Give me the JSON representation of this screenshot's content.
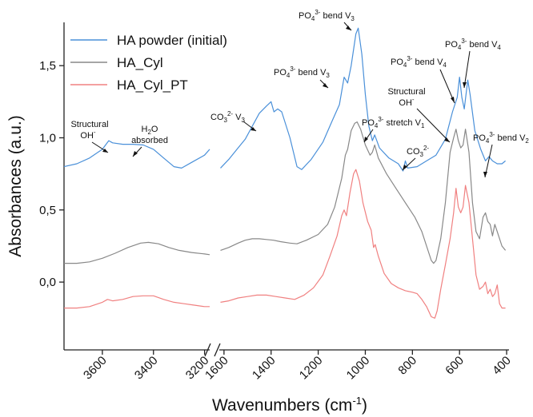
{
  "chart_data": {
    "type": "line",
    "xlabel": "Wavenumbers (cm",
    "xlabel_sup": "-1",
    "xlabel_end": ")",
    "ylabel": "Absorbances (a.u.)",
    "ylim": [
      -0.47,
      1.8
    ],
    "x_reversed": true,
    "x_break": true,
    "x_segments": [
      [
        3750,
        3180
      ],
      [
        1620,
        390
      ]
    ],
    "x_ticks_left": [
      "3600",
      "3400",
      "3200"
    ],
    "x_ticks_right": [
      "1600",
      "1400",
      "1200",
      "1000",
      "800",
      "600",
      "400"
    ],
    "y_ticks": [
      "0,0",
      "0,5",
      "1,0",
      "1,5"
    ],
    "legend_position": "top-left",
    "series": [
      {
        "name": "HA powder (initial)",
        "color": "#4a90d9",
        "left": [
          [
            3750,
            0.8
          ],
          [
            3700,
            0.82
          ],
          [
            3650,
            0.86
          ],
          [
            3600,
            0.92
          ],
          [
            3575,
            0.98
          ],
          [
            3560,
            0.965
          ],
          [
            3520,
            0.955
          ],
          [
            3480,
            0.955
          ],
          [
            3440,
            0.95
          ],
          [
            3400,
            0.92
          ],
          [
            3360,
            0.86
          ],
          [
            3320,
            0.8
          ],
          [
            3290,
            0.79
          ],
          [
            3250,
            0.83
          ],
          [
            3200,
            0.88
          ],
          [
            3180,
            0.92
          ]
        ],
        "right": [
          [
            1615,
            0.79
          ],
          [
            1580,
            0.85
          ],
          [
            1540,
            0.93
          ],
          [
            1510,
            0.99
          ],
          [
            1480,
            1.08
          ],
          [
            1450,
            1.17
          ],
          [
            1420,
            1.22
          ],
          [
            1400,
            1.25
          ],
          [
            1388,
            1.18
          ],
          [
            1372,
            1.2
          ],
          [
            1355,
            1.18
          ],
          [
            1320,
            1.0
          ],
          [
            1290,
            0.8
          ],
          [
            1270,
            0.78
          ],
          [
            1230,
            0.85
          ],
          [
            1180,
            0.97
          ],
          [
            1140,
            1.12
          ],
          [
            1110,
            1.23
          ],
          [
            1090,
            1.42
          ],
          [
            1075,
            1.38
          ],
          [
            1060,
            1.5
          ],
          [
            1040,
            1.72
          ],
          [
            1030,
            1.76
          ],
          [
            1015,
            1.58
          ],
          [
            1000,
            1.3
          ],
          [
            985,
            1.08
          ],
          [
            970,
            0.98
          ],
          [
            960,
            1.02
          ],
          [
            940,
            0.93
          ],
          [
            900,
            0.86
          ],
          [
            860,
            0.82
          ],
          [
            840,
            0.77
          ],
          [
            830,
            0.84
          ],
          [
            820,
            0.79
          ],
          [
            780,
            0.8
          ],
          [
            740,
            0.84
          ],
          [
            700,
            0.88
          ],
          [
            660,
            0.99
          ],
          [
            630,
            1.18
          ],
          [
            610,
            1.28
          ],
          [
            600,
            1.42
          ],
          [
            590,
            1.28
          ],
          [
            580,
            1.2
          ],
          [
            565,
            1.4
          ],
          [
            555,
            1.3
          ],
          [
            535,
            1.05
          ],
          [
            510,
            0.92
          ],
          [
            490,
            0.84
          ],
          [
            475,
            0.87
          ],
          [
            460,
            0.84
          ],
          [
            440,
            0.82
          ],
          [
            420,
            0.82
          ],
          [
            405,
            0.84
          ]
        ]
      },
      {
        "name": "HA_Cyl",
        "color": "#888888",
        "left": [
          [
            3750,
            0.13
          ],
          [
            3700,
            0.13
          ],
          [
            3650,
            0.14
          ],
          [
            3600,
            0.165
          ],
          [
            3550,
            0.2
          ],
          [
            3500,
            0.24
          ],
          [
            3450,
            0.27
          ],
          [
            3420,
            0.275
          ],
          [
            3380,
            0.265
          ],
          [
            3340,
            0.24
          ],
          [
            3300,
            0.22
          ],
          [
            3250,
            0.205
          ],
          [
            3200,
            0.195
          ],
          [
            3180,
            0.19
          ]
        ],
        "right": [
          [
            1615,
            0.22
          ],
          [
            1580,
            0.24
          ],
          [
            1540,
            0.27
          ],
          [
            1510,
            0.29
          ],
          [
            1480,
            0.3
          ],
          [
            1450,
            0.3
          ],
          [
            1420,
            0.295
          ],
          [
            1390,
            0.29
          ],
          [
            1360,
            0.28
          ],
          [
            1320,
            0.27
          ],
          [
            1290,
            0.265
          ],
          [
            1250,
            0.29
          ],
          [
            1200,
            0.33
          ],
          [
            1160,
            0.4
          ],
          [
            1130,
            0.52
          ],
          [
            1100,
            0.72
          ],
          [
            1085,
            0.88
          ],
          [
            1075,
            0.92
          ],
          [
            1060,
            1.05
          ],
          [
            1045,
            1.1
          ],
          [
            1035,
            1.11
          ],
          [
            1020,
            1.06
          ],
          [
            1000,
            0.95
          ],
          [
            980,
            0.88
          ],
          [
            970,
            0.9
          ],
          [
            960,
            0.95
          ],
          [
            945,
            0.86
          ],
          [
            910,
            0.75
          ],
          [
            870,
            0.65
          ],
          [
            830,
            0.55
          ],
          [
            790,
            0.45
          ],
          [
            760,
            0.35
          ],
          [
            740,
            0.25
          ],
          [
            720,
            0.15
          ],
          [
            710,
            0.13
          ],
          [
            700,
            0.15
          ],
          [
            680,
            0.3
          ],
          [
            660,
            0.55
          ],
          [
            640,
            0.9
          ],
          [
            625,
            1.0
          ],
          [
            615,
            1.06
          ],
          [
            605,
            0.98
          ],
          [
            595,
            0.93
          ],
          [
            585,
            0.95
          ],
          [
            575,
            1.06
          ],
          [
            560,
            0.9
          ],
          [
            545,
            0.55
          ],
          [
            530,
            0.35
          ],
          [
            515,
            0.3
          ],
          [
            500,
            0.45
          ],
          [
            490,
            0.48
          ],
          [
            480,
            0.42
          ],
          [
            470,
            0.4
          ],
          [
            460,
            0.32
          ],
          [
            450,
            0.4
          ],
          [
            440,
            0.35
          ],
          [
            420,
            0.25
          ],
          [
            405,
            0.22
          ]
        ]
      },
      {
        "name": "HA_Cyl_PT",
        "color": "#f08080",
        "left": [
          [
            3750,
            -0.18
          ],
          [
            3700,
            -0.18
          ],
          [
            3650,
            -0.17
          ],
          [
            3600,
            -0.14
          ],
          [
            3580,
            -0.12
          ],
          [
            3560,
            -0.13
          ],
          [
            3520,
            -0.12
          ],
          [
            3480,
            -0.1
          ],
          [
            3440,
            -0.095
          ],
          [
            3400,
            -0.095
          ],
          [
            3360,
            -0.12
          ],
          [
            3320,
            -0.14
          ],
          [
            3280,
            -0.15
          ],
          [
            3240,
            -0.16
          ],
          [
            3200,
            -0.17
          ],
          [
            3180,
            -0.17
          ]
        ],
        "right": [
          [
            1615,
            -0.14
          ],
          [
            1580,
            -0.13
          ],
          [
            1540,
            -0.11
          ],
          [
            1500,
            -0.1
          ],
          [
            1460,
            -0.09
          ],
          [
            1420,
            -0.09
          ],
          [
            1380,
            -0.1
          ],
          [
            1340,
            -0.11
          ],
          [
            1300,
            -0.12
          ],
          [
            1260,
            -0.09
          ],
          [
            1220,
            -0.04
          ],
          [
            1180,
            0.05
          ],
          [
            1150,
            0.18
          ],
          [
            1120,
            0.32
          ],
          [
            1100,
            0.46
          ],
          [
            1090,
            0.5
          ],
          [
            1080,
            0.46
          ],
          [
            1065,
            0.62
          ],
          [
            1050,
            0.75
          ],
          [
            1040,
            0.78
          ],
          [
            1025,
            0.7
          ],
          [
            1010,
            0.55
          ],
          [
            990,
            0.42
          ],
          [
            975,
            0.36
          ],
          [
            965,
            0.24
          ],
          [
            958,
            0.26
          ],
          [
            945,
            0.18
          ],
          [
            920,
            0.06
          ],
          [
            890,
            -0.01
          ],
          [
            860,
            -0.04
          ],
          [
            830,
            -0.06
          ],
          [
            800,
            -0.07
          ],
          [
            780,
            -0.08
          ],
          [
            760,
            -0.12
          ],
          [
            740,
            -0.17
          ],
          [
            720,
            -0.24
          ],
          [
            705,
            -0.25
          ],
          [
            695,
            -0.2
          ],
          [
            680,
            -0.05
          ],
          [
            660,
            0.12
          ],
          [
            640,
            0.3
          ],
          [
            625,
            0.48
          ],
          [
            615,
            0.65
          ],
          [
            605,
            0.52
          ],
          [
            595,
            0.48
          ],
          [
            585,
            0.52
          ],
          [
            575,
            0.67
          ],
          [
            560,
            0.55
          ],
          [
            545,
            0.3
          ],
          [
            530,
            0.05
          ],
          [
            515,
            -0.05
          ],
          [
            500,
            -0.03
          ],
          [
            490,
            0.0
          ],
          [
            480,
            -0.08
          ],
          [
            470,
            -0.05
          ],
          [
            460,
            -0.1
          ],
          [
            450,
            -0.08
          ],
          [
            440,
            -0.02
          ],
          [
            430,
            -0.15
          ],
          [
            420,
            -0.18
          ],
          [
            405,
            -0.18
          ]
        ]
      }
    ],
    "annotations": [
      {
        "id": "oh-left",
        "lines": [
          "Structural",
          "OH"
        ],
        "sup": "-"
      },
      {
        "id": "h2o",
        "lines": [
          "H",
          "2",
          "O",
          "absorbed"
        ]
      },
      {
        "id": "co3-v3",
        "text": "CO3 2- V3"
      },
      {
        "id": "po4-v3-left",
        "text": "PO4 3- bend V3"
      },
      {
        "id": "po4-v3-top",
        "text": "PO4 3- bend V3"
      },
      {
        "id": "po4-v1",
        "text": "PO4 3- stretch V1"
      },
      {
        "id": "co3",
        "text": "CO3 2-"
      },
      {
        "id": "oh-right",
        "text": "Structural OH-"
      },
      {
        "id": "po4-v4-a",
        "text": "PO4 3- bend V4"
      },
      {
        "id": "po4-v4-b",
        "text": "PO4 3- bend V4"
      },
      {
        "id": "po4-v2",
        "text": "PO4 3- bend V2"
      }
    ]
  }
}
